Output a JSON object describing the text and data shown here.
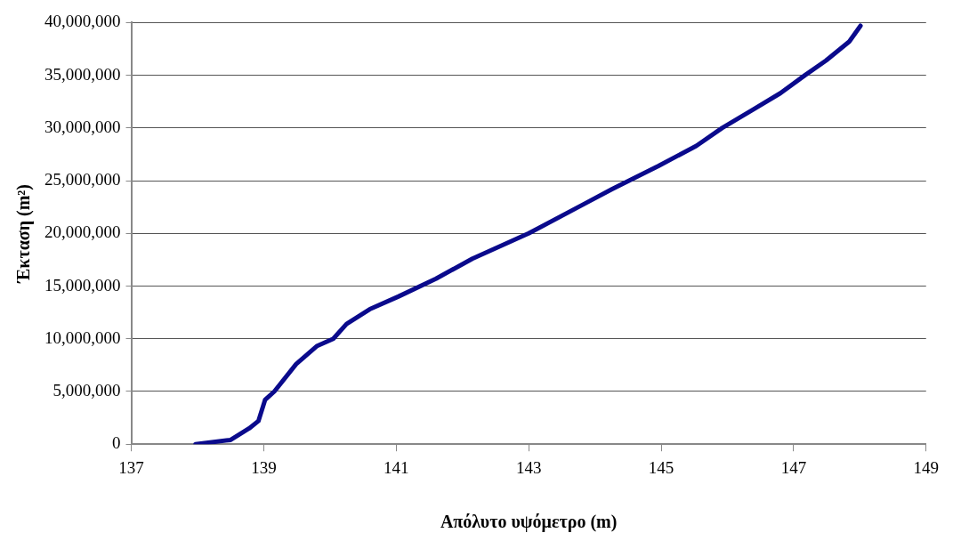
{
  "chart_data": {
    "type": "line",
    "xlabel": "Απόλυτο υψόμετρο (m)",
    "ylabel": "Έκταση (m²)",
    "x": [
      137.97,
      138.5,
      138.78,
      138.92,
      139.02,
      139.16,
      139.49,
      139.8,
      140.05,
      140.25,
      140.6,
      141.03,
      141.6,
      142.15,
      143.0,
      143.84,
      144.26,
      144.96,
      145.53,
      145.92,
      146.4,
      146.8,
      147.17,
      147.49,
      147.84,
      148.01
    ],
    "series": [
      {
        "color": "#0a0a8c",
        "values": [
          0,
          400000,
          1500000,
          2200000,
          4200000,
          5000000,
          7600000,
          9300000,
          10000000,
          11400000,
          12800000,
          14000000,
          15700000,
          17600000,
          20000000,
          22800000,
          24200000,
          26400000,
          28300000,
          30000000,
          31800000,
          33300000,
          35000000,
          36400000,
          38200000,
          39700000
        ]
      }
    ],
    "xlim": [
      137,
      149
    ],
    "xticks": [
      137,
      139,
      141,
      143,
      145,
      147,
      149
    ],
    "ylim": [
      0,
      40000000
    ],
    "yticks": [
      0,
      {
        "value": 5000000,
        "label": "5,000,000"
      },
      {
        "value": 10000000,
        "label": "10,000,000"
      },
      {
        "value": 15000000,
        "label": "15,000,000"
      },
      {
        "value": 20000000,
        "label": "20,000,000"
      },
      {
        "value": 25000000,
        "label": "25,000,000"
      },
      {
        "value": 30000000,
        "label": "30,000,000"
      },
      {
        "value": 35000000,
        "label": "35,000,000"
      },
      {
        "value": 40000000,
        "label": "40,000,000"
      }
    ],
    "grid": "y",
    "legend": false,
    "marker": "none",
    "line_style": "solid"
  }
}
